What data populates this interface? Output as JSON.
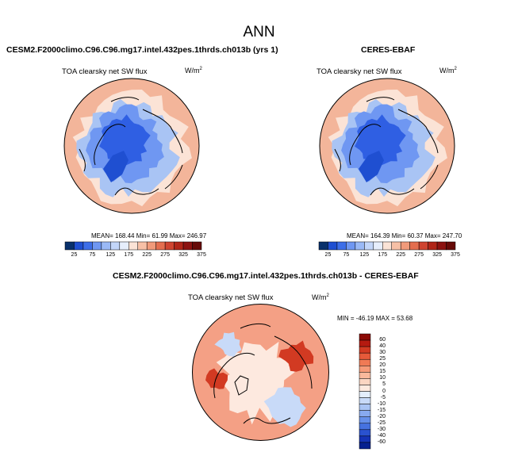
{
  "main_title": "ANN",
  "panels": [
    {
      "title": "CESM2.F2000climo.C96.C96.mg17.intel.432pes.1thrds.ch013b (yrs 1)",
      "field": "TOA clearsky net SW flux",
      "units_base": "W/m",
      "units_exp": "2",
      "stats": "MEAN= 168.44  Min= 61.99  Max= 246.97"
    },
    {
      "title": "CERES-EBAF",
      "field": "TOA clearsky net SW flux",
      "units_base": "W/m",
      "units_exp": "2",
      "stats": "MEAN= 164.39  Min= 60.37  Max= 247.70"
    },
    {
      "title": "CESM2.F2000climo.C96.C96.mg17.intel.432pes.1thrds.ch013b - CERES-EBAF",
      "field": "TOA clearsky net SW flux",
      "units_base": "W/m",
      "units_exp": "2",
      "stats": "MIN = -46.19 MAX =  53.68"
    }
  ],
  "abs_colorbar": {
    "labels": [
      "25",
      "75",
      "125",
      "175",
      "225",
      "275",
      "325",
      "375"
    ],
    "colors": [
      "#08306b",
      "#1f4fd1",
      "#3d6ee8",
      "#6f97f2",
      "#9ab9f6",
      "#c3d6f9",
      "#e6eefc",
      "#fbe3d6",
      "#f7c0a6",
      "#f19a7a",
      "#e46e4f",
      "#cf4430",
      "#b02518",
      "#8c1210",
      "#670a08"
    ]
  },
  "diff_colorbar": {
    "labels": [
      "60",
      "40",
      "30",
      "25",
      "20",
      "15",
      "10",
      "5",
      "0",
      "-5",
      "-10",
      "-15",
      "-20",
      "-25",
      "-30",
      "-40",
      "-60"
    ],
    "colors": [
      "#8b0a05",
      "#b51a10",
      "#d23a22",
      "#e65a3a",
      "#f07a55",
      "#f69a78",
      "#f9b99c",
      "#fbd5c2",
      "#fde9df",
      "#e3edfb",
      "#c8daf8",
      "#a9c4f4",
      "#88aaf0",
      "#6690ea",
      "#4672e0",
      "#2a52cf",
      "#1533b6",
      "#06208f"
    ]
  },
  "map_colors": {
    "abs_outer": "#f3b59a",
    "abs_ring": "#fbe3d6",
    "abs_mid": "#a9c4f4",
    "abs_inner": "#6f97f2",
    "abs_core": "#2f5fe3",
    "abs_deep": "#1f4fd1",
    "diff_base": "#f4a085",
    "diff_light": "#fde9df",
    "diff_blue": "#c8daf8",
    "diff_red": "#d23a22"
  }
}
